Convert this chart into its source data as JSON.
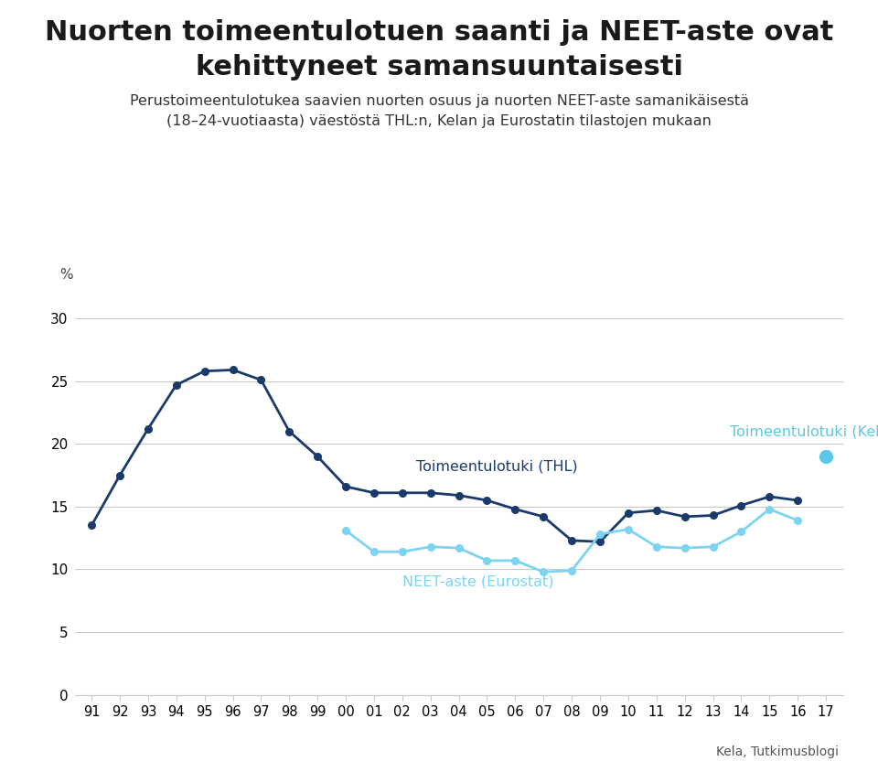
{
  "title_line1": "Nuorten toimeentulotuen saanti ja NEET-aste ovat",
  "title_line2": "kehittyneet samansuuntaisesti",
  "subtitle_line1": "Perustoimeentulotukea saavien nuorten osuus ja nuorten NEET-aste samanikäisestä",
  "subtitle_line2": "(18–24-vuotiaasta) väestöstä THL:n, Kelan ja Eurostatin tilastojen mukaan",
  "source": "Kela, Tutkimusblogi",
  "ylabel": "%",
  "yticks": [
    0,
    5,
    10,
    15,
    20,
    25,
    30
  ],
  "ylim": [
    0,
    32
  ],
  "thl_years": [
    1991,
    1992,
    1993,
    1994,
    1995,
    1996,
    1997,
    1998,
    1999,
    2000,
    2001,
    2002,
    2003,
    2004,
    2005,
    2006,
    2007,
    2008,
    2009,
    2010,
    2011,
    2012,
    2013,
    2014,
    2015,
    2016
  ],
  "thl_values": [
    13.5,
    17.5,
    21.2,
    24.7,
    25.8,
    25.9,
    25.1,
    21.0,
    19.0,
    16.6,
    16.1,
    16.1,
    16.1,
    15.9,
    15.5,
    14.8,
    14.2,
    12.3,
    12.2,
    14.5,
    14.7,
    14.2,
    14.3,
    15.1,
    15.8,
    15.5
  ],
  "kela_years": [
    2017
  ],
  "kela_values": [
    19.0
  ],
  "neet_years": [
    2000,
    2001,
    2002,
    2003,
    2004,
    2005,
    2006,
    2007,
    2008,
    2009,
    2010,
    2011,
    2012,
    2013,
    2014,
    2015,
    2016
  ],
  "neet_values": [
    13.1,
    11.4,
    11.4,
    11.8,
    11.7,
    10.7,
    10.7,
    9.8,
    9.9,
    12.8,
    13.2,
    11.8,
    11.7,
    11.8,
    13.0,
    14.8,
    13.9
  ],
  "thl_color": "#1a3a6b",
  "kela_color": "#5bc8e8",
  "neet_color": "#7dd4f0",
  "thl_label": "Toimeentulotuki (THL)",
  "kela_label": "Toimeentulotuki (Kela)",
  "neet_label": "NEET-aste (Eurostat)",
  "xtick_labels": [
    "91",
    "92",
    "93",
    "94",
    "95",
    "96",
    "97",
    "98",
    "99",
    "00",
    "01",
    "02",
    "03",
    "04",
    "05",
    "06",
    "07",
    "08",
    "09",
    "10",
    "11",
    "12",
    "13",
    "14",
    "15",
    "16",
    "17"
  ],
  "background_color": "#ffffff",
  "grid_color": "#c8c8c8"
}
